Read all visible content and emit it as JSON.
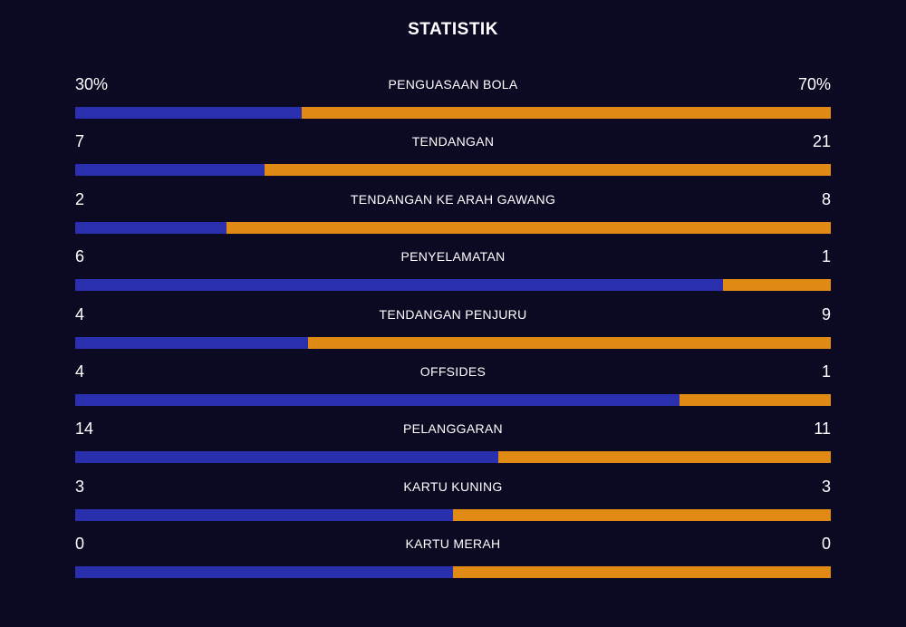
{
  "title": "STATISTIK",
  "colors": {
    "background": "#0b0a22",
    "home_bar": "#2a2fae",
    "away_bar": "#e08a14",
    "text": "#ffffff"
  },
  "stats": [
    {
      "label": "PENGUASAAN BOLA",
      "home": "30%",
      "away": "70%",
      "home_share": 0.3
    },
    {
      "label": "TENDANGAN",
      "home": "7",
      "away": "21",
      "home_share": 0.25
    },
    {
      "label": "TENDANGAN KE ARAH GAWANG",
      "home": "2",
      "away": "8",
      "home_share": 0.2
    },
    {
      "label": "PENYELAMATAN",
      "home": "6",
      "away": "1",
      "home_share": 0.857
    },
    {
      "label": "TENDANGAN PENJURU",
      "home": "4",
      "away": "9",
      "home_share": 0.308
    },
    {
      "label": "OFFSIDES",
      "home": "4",
      "away": "1",
      "home_share": 0.8
    },
    {
      "label": "PELANGGARAN",
      "home": "14",
      "away": "11",
      "home_share": 0.56
    },
    {
      "label": "KARTU KUNING",
      "home": "3",
      "away": "3",
      "home_share": 0.5
    },
    {
      "label": "KARTU MERAH",
      "home": "0",
      "away": "0",
      "home_share": 0.5
    }
  ]
}
